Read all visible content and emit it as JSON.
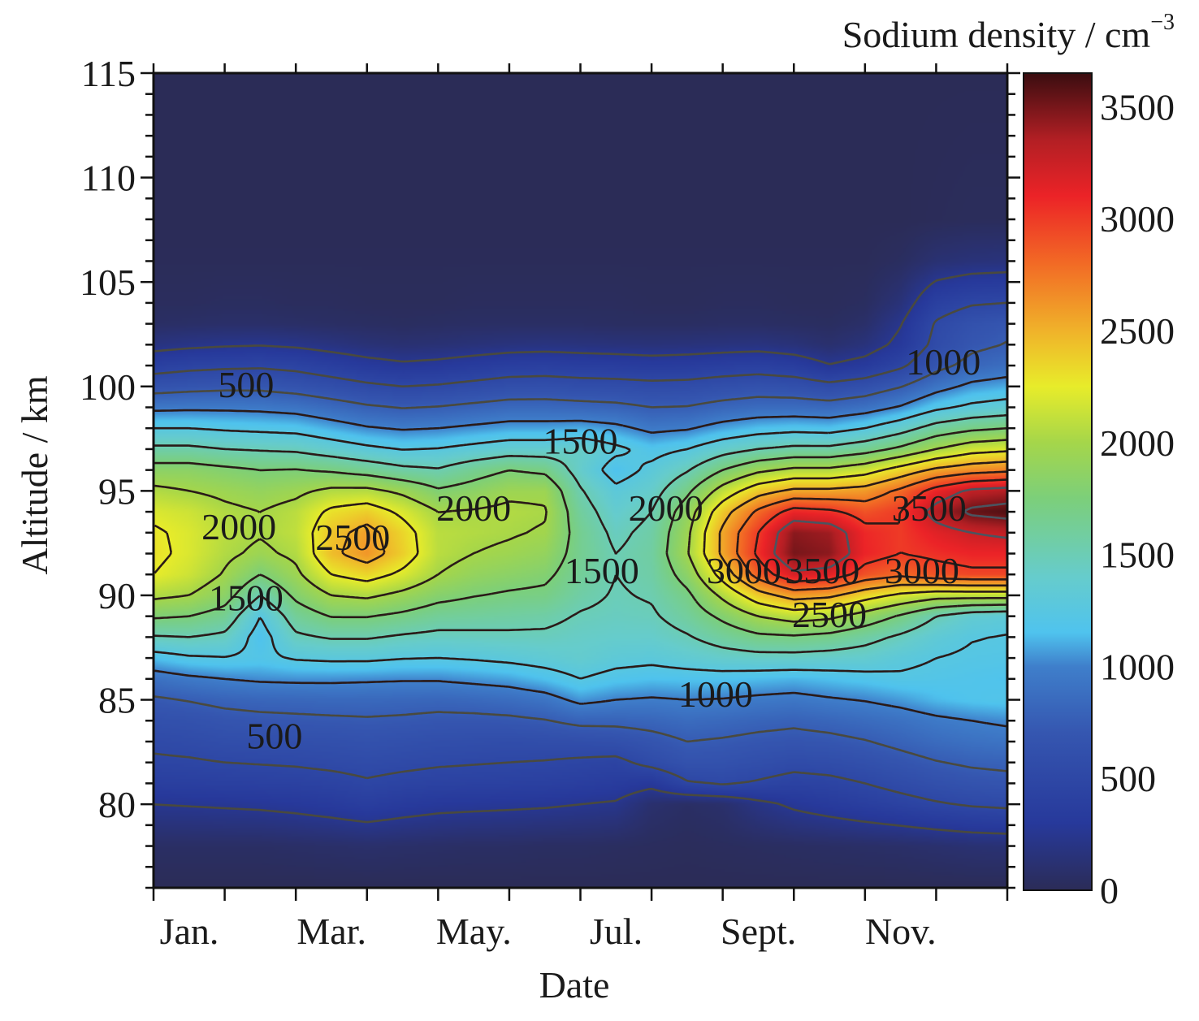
{
  "chart_data": {
    "type": "heatmap",
    "title": "",
    "xlabel": "Date",
    "ylabel": "Altitude / km",
    "colorbar_label": "Sodium density / cm",
    "colorbar_label_superscript": "−3",
    "x_tick_labels": [
      "Jan.",
      "Mar.",
      "May.",
      "Jul.",
      "Sept.",
      "Nov."
    ],
    "x_tick_positions_month_index": [
      0,
      2,
      4,
      6,
      8,
      10
    ],
    "x_range_months": [
      0,
      12
    ],
    "y_ticks": [
      80,
      85,
      90,
      95,
      100,
      105,
      110,
      115
    ],
    "y_tick_labels": [
      "80",
      "85",
      "90",
      "95",
      "100",
      "105",
      "110",
      "115"
    ],
    "ylim": [
      76,
      115
    ],
    "colorbar_ticks": [
      0,
      500,
      1000,
      1500,
      2000,
      2500,
      3000,
      3500
    ],
    "colorbar_tick_labels": [
      "0",
      "500",
      "1000",
      "1500",
      "2000",
      "2500",
      "3000",
      "3500"
    ],
    "color_range": [
      0,
      3650
    ],
    "colormap": [
      {
        "v": 0,
        "c": "#2b2c57"
      },
      {
        "v": 300,
        "c": "#27399b"
      },
      {
        "v": 700,
        "c": "#3556b0"
      },
      {
        "v": 1000,
        "c": "#3f7fcb"
      },
      {
        "v": 1150,
        "c": "#4fc3ee"
      },
      {
        "v": 1400,
        "c": "#66cccc"
      },
      {
        "v": 1750,
        "c": "#7ccf7a"
      },
      {
        "v": 2000,
        "c": "#a5d64a"
      },
      {
        "v": 2250,
        "c": "#e8ec2a"
      },
      {
        "v": 2500,
        "c": "#f0b22a"
      },
      {
        "v": 2800,
        "c": "#f26a25"
      },
      {
        "v": 3100,
        "c": "#ec2327"
      },
      {
        "v": 3350,
        "c": "#b31f24"
      },
      {
        "v": 3650,
        "c": "#3a0d10"
      }
    ],
    "contour_levels": [
      250,
      500,
      750,
      1000,
      1250,
      1500,
      1750,
      2000,
      2250,
      2500,
      2750,
      3000,
      3250,
      3500
    ],
    "contour_labels": [
      {
        "text": "500",
        "month": 1.3,
        "alt": 100.1
      },
      {
        "text": "2000",
        "month": 1.2,
        "alt": 93.3
      },
      {
        "text": "2500",
        "month": 2.8,
        "alt": 92.8
      },
      {
        "text": "1500",
        "month": 1.3,
        "alt": 89.9
      },
      {
        "text": "500",
        "month": 1.7,
        "alt": 83.3
      },
      {
        "text": "2000",
        "month": 4.5,
        "alt": 94.2
      },
      {
        "text": "1500",
        "month": 6.0,
        "alt": 97.4
      },
      {
        "text": "1500",
        "month": 6.3,
        "alt": 91.2
      },
      {
        "text": "2000",
        "month": 7.2,
        "alt": 94.2
      },
      {
        "text": "1000",
        "month": 7.9,
        "alt": 85.3
      },
      {
        "text": "3000",
        "month": 8.3,
        "alt": 91.2
      },
      {
        "text": "3500",
        "month": 9.4,
        "alt": 91.2
      },
      {
        "text": "2500",
        "month": 9.5,
        "alt": 89.1
      },
      {
        "text": "3000",
        "month": 10.8,
        "alt": 91.2
      },
      {
        "text": "3500",
        "month": 10.9,
        "alt": 94.2
      },
      {
        "text": "1000",
        "month": 11.1,
        "alt": 101.2
      }
    ],
    "grid_months": [
      0,
      0.5,
      1,
      1.5,
      2,
      2.5,
      3,
      3.5,
      4,
      4.5,
      5,
      5.5,
      6,
      6.5,
      7,
      7.5,
      8,
      8.5,
      9,
      9.5,
      10,
      10.5,
      11,
      11.5,
      12
    ],
    "grid_altitudes": [
      76,
      78,
      80,
      81,
      82,
      83,
      84,
      85,
      86,
      87,
      88,
      89,
      90,
      91,
      92,
      93,
      94,
      95,
      96,
      97,
      98,
      99,
      100,
      101,
      102,
      103,
      104,
      106,
      108,
      115
    ],
    "density_grid_by_altitude": [
      [
        0,
        0,
        0,
        0,
        0,
        0,
        0,
        0,
        0,
        0,
        0,
        0,
        0,
        0,
        0,
        0,
        0,
        0,
        0,
        0,
        0,
        0,
        0,
        0,
        0
      ],
      [
        60,
        60,
        60,
        60,
        70,
        80,
        90,
        80,
        70,
        60,
        60,
        50,
        50,
        40,
        30,
        20,
        30,
        40,
        50,
        60,
        70,
        80,
        100,
        120,
        130
      ],
      [
        250,
        260,
        270,
        280,
        300,
        330,
        370,
        330,
        300,
        290,
        280,
        270,
        250,
        230,
        100,
        60,
        90,
        200,
        280,
        330,
        380,
        430,
        480,
        520,
        540
      ],
      [
        380,
        390,
        400,
        410,
        420,
        440,
        480,
        450,
        430,
        420,
        410,
        400,
        380,
        350,
        300,
        480,
        520,
        480,
        430,
        450,
        500,
        560,
        620,
        660,
        680
      ],
      [
        470,
        480,
        500,
        510,
        520,
        540,
        560,
        540,
        520,
        510,
        500,
        490,
        470,
        450,
        560,
        650,
        640,
        600,
        560,
        580,
        620,
        680,
        740,
        780,
        800
      ],
      [
        540,
        560,
        590,
        600,
        610,
        620,
        640,
        620,
        600,
        590,
        580,
        590,
        600,
        620,
        680,
        750,
        730,
        700,
        680,
        700,
        740,
        800,
        860,
        900,
        920
      ],
      [
        620,
        640,
        680,
        700,
        710,
        720,
        730,
        720,
        700,
        700,
        710,
        740,
        800,
        800,
        820,
        860,
        840,
        810,
        790,
        820,
        860,
        900,
        960,
        1000,
        1030
      ],
      [
        720,
        760,
        800,
        820,
        830,
        840,
        840,
        830,
        820,
        840,
        870,
        920,
        1050,
        1000,
        980,
        1000,
        990,
        960,
        940,
        980,
        1010,
        1060,
        1130,
        1170,
        1190
      ],
      [
        900,
        960,
        1000,
        1030,
        1040,
        1040,
        1030,
        1020,
        1020,
        1050,
        1080,
        1150,
        1250,
        1180,
        1150,
        1160,
        1160,
        1140,
        1120,
        1150,
        1180,
        1220,
        1200,
        1180,
        1160
      ],
      [
        1150,
        1220,
        1240,
        1200,
        1270,
        1290,
        1290,
        1260,
        1250,
        1270,
        1300,
        1340,
        1380,
        1320,
        1300,
        1350,
        1400,
        1420,
        1420,
        1400,
        1380,
        1300,
        1250,
        1220,
        1210
      ],
      [
        1480,
        1500,
        1450,
        1150,
        1460,
        1520,
        1520,
        1470,
        1440,
        1450,
        1460,
        1460,
        1420,
        1400,
        1400,
        1480,
        1600,
        1700,
        1720,
        1680,
        1580,
        1460,
        1330,
        1260,
        1240
      ],
      [
        1780,
        1750,
        1650,
        1250,
        1620,
        1760,
        1760,
        1700,
        1620,
        1600,
        1580,
        1560,
        1480,
        1450,
        1470,
        1600,
        1800,
        2000,
        2100,
        2050,
        1900,
        1720,
        1500,
        1360,
        1320
      ],
      [
        2050,
        2000,
        1850,
        1500,
        1800,
        2000,
        2040,
        1940,
        1820,
        1760,
        1720,
        1700,
        1560,
        1480,
        1520,
        1700,
        2050,
        2400,
        2600,
        2550,
        2350,
        2200,
        2100,
        2100,
        2100
      ],
      [
        2250,
        2150,
        1980,
        1750,
        1950,
        2250,
        2350,
        2200,
        2000,
        1900,
        1850,
        1800,
        1620,
        1500,
        1560,
        1850,
        2350,
        2850,
        3200,
        3150,
        2900,
        2800,
        2900,
        2950,
        2950
      ],
      [
        2300,
        2200,
        2050,
        1950,
        2050,
        2450,
        2620,
        2380,
        2080,
        2000,
        1960,
        1900,
        1650,
        1500,
        1580,
        1980,
        2550,
        3050,
        3500,
        3450,
        3100,
        3000,
        3050,
        3100,
        3100
      ],
      [
        2280,
        2200,
        2080,
        2020,
        2100,
        2420,
        2580,
        2350,
        2080,
        2050,
        2020,
        1980,
        1650,
        1450,
        1560,
        1950,
        2550,
        3000,
        3450,
        3400,
        3080,
        3000,
        3150,
        3250,
        3300
      ],
      [
        2200,
        2150,
        2050,
        2000,
        2080,
        2300,
        2380,
        2200,
        2000,
        2020,
        2050,
        2020,
        1600,
        1380,
        1500,
        1880,
        2400,
        2800,
        3100,
        3050,
        2900,
        3000,
        3350,
        3550,
        3600
      ],
      [
        2050,
        2000,
        1950,
        1900,
        1950,
        2050,
        2060,
        1950,
        1780,
        1850,
        1950,
        1950,
        1520,
        1300,
        1400,
        1700,
        2100,
        2400,
        2550,
        2550,
        2600,
        2800,
        3100,
        3300,
        3350
      ],
      [
        1850,
        1850,
        1800,
        1750,
        1760,
        1720,
        1650,
        1560,
        1520,
        1650,
        1750,
        1700,
        1400,
        1150,
        1300,
        1480,
        1750,
        1950,
        2050,
        2050,
        2150,
        2350,
        2550,
        2650,
        2700
      ],
      [
        1550,
        1550,
        1500,
        1480,
        1460,
        1380,
        1300,
        1240,
        1260,
        1320,
        1380,
        1380,
        1420,
        1300,
        1180,
        1250,
        1400,
        1500,
        1560,
        1560,
        1650,
        1800,
        2000,
        2150,
        2200
      ],
      [
        1250,
        1250,
        1220,
        1200,
        1180,
        1100,
        1020,
        980,
        1000,
        1040,
        1080,
        1080,
        1100,
        1050,
        950,
        980,
        1080,
        1150,
        1180,
        1160,
        1250,
        1400,
        1600,
        1700,
        1750
      ],
      [
        950,
        960,
        960,
        950,
        920,
        850,
        780,
        740,
        760,
        800,
        840,
        840,
        820,
        800,
        750,
        760,
        820,
        860,
        860,
        840,
        900,
        1020,
        1200,
        1300,
        1350
      ],
      [
        650,
        680,
        700,
        700,
        660,
        600,
        540,
        500,
        520,
        560,
        600,
        610,
        590,
        580,
        560,
        570,
        610,
        640,
        620,
        560,
        620,
        740,
        920,
        1050,
        1100
      ],
      [
        400,
        440,
        460,
        470,
        440,
        380,
        320,
        280,
        300,
        340,
        380,
        390,
        370,
        360,
        340,
        350,
        380,
        400,
        360,
        260,
        320,
        460,
        680,
        820,
        880
      ],
      [
        180,
        210,
        230,
        240,
        220,
        180,
        140,
        120,
        130,
        150,
        170,
        180,
        170,
        160,
        150,
        160,
        170,
        180,
        150,
        100,
        160,
        300,
        560,
        700,
        760
      ],
      [
        60,
        70,
        80,
        80,
        70,
        60,
        50,
        40,
        50,
        60,
        60,
        60,
        60,
        50,
        50,
        50,
        60,
        60,
        50,
        40,
        80,
        240,
        520,
        640,
        700
      ],
      [
        30,
        30,
        40,
        40,
        30,
        30,
        20,
        20,
        20,
        30,
        30,
        30,
        30,
        30,
        20,
        20,
        30,
        30,
        20,
        20,
        40,
        150,
        400,
        480,
        500
      ],
      [
        10,
        10,
        10,
        10,
        10,
        10,
        10,
        10,
        10,
        10,
        10,
        10,
        10,
        10,
        10,
        10,
        10,
        10,
        10,
        10,
        10,
        40,
        120,
        150,
        160
      ],
      [
        0,
        0,
        0,
        0,
        0,
        0,
        0,
        0,
        0,
        0,
        0,
        0,
        0,
        0,
        0,
        0,
        0,
        0,
        0,
        0,
        0,
        0,
        10,
        20,
        20
      ],
      [
        0,
        0,
        0,
        0,
        0,
        0,
        0,
        0,
        0,
        0,
        0,
        0,
        0,
        0,
        0,
        0,
        0,
        0,
        0,
        0,
        0,
        0,
        0,
        0,
        0
      ]
    ]
  }
}
